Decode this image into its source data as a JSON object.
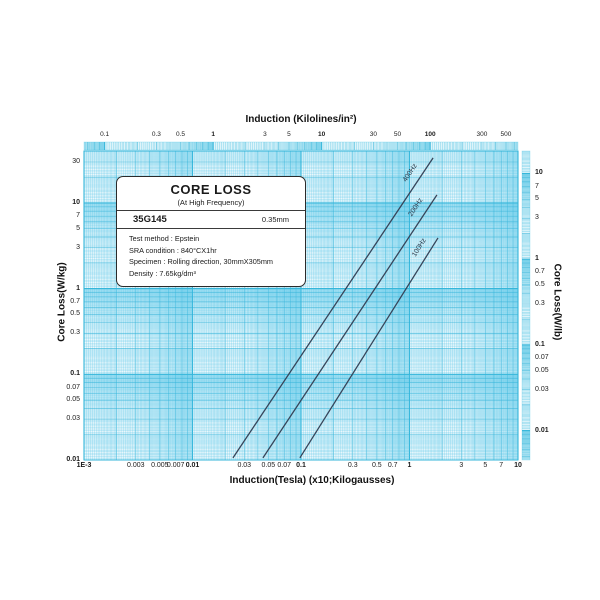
{
  "infobox": {
    "title": "CORE LOSS",
    "subtitle": "(At High Frequency)",
    "grade": "35G145",
    "thickness": "0.35mm",
    "details": [
      "Test method : Epstein",
      "SRA condition : 840°CX1hr",
      "Specimen : Rolling direction, 30mmX305mm",
      "Density : 7.65kg/dm³"
    ]
  },
  "axes": {
    "top": {
      "title": "Induction (Kilolines/in²)",
      "ticks": [
        {
          "v": 0.1,
          "label": "0.1",
          "bold": false
        },
        {
          "v": 0.3,
          "label": "0.3",
          "bold": false
        },
        {
          "v": 0.5,
          "label": "0.5",
          "bold": false
        },
        {
          "v": 1,
          "label": "1",
          "bold": true
        },
        {
          "v": 3,
          "label": "3",
          "bold": false
        },
        {
          "v": 5,
          "label": "5",
          "bold": false
        },
        {
          "v": 10,
          "label": "10",
          "bold": true
        },
        {
          "v": 30,
          "label": "30",
          "bold": false
        },
        {
          "v": 50,
          "label": "50",
          "bold": false
        },
        {
          "v": 100,
          "label": "100",
          "bold": true
        },
        {
          "v": 300,
          "label": "300",
          "bold": false
        },
        {
          "v": 500,
          "label": "500",
          "bold": false
        }
      ]
    },
    "bottom": {
      "title": "Induction(Tesla) (x10;Kilogausses)",
      "ticks": [
        {
          "v": 0.001,
          "label": "1E-3",
          "bold": true
        },
        {
          "v": 0.003,
          "label": "0.003",
          "bold": false
        },
        {
          "v": 0.005,
          "label": "0.005",
          "bold": false
        },
        {
          "v": 0.007,
          "label": "0.007",
          "bold": false
        },
        {
          "v": 0.01,
          "label": "0.01",
          "bold": true
        },
        {
          "v": 0.03,
          "label": "0.03",
          "bold": false
        },
        {
          "v": 0.05,
          "label": "0.05",
          "bold": false
        },
        {
          "v": 0.07,
          "label": "0.07",
          "bold": false
        },
        {
          "v": 0.1,
          "label": "0.1",
          "bold": true
        },
        {
          "v": 0.3,
          "label": "0.3",
          "bold": false
        },
        {
          "v": 0.5,
          "label": "0.5",
          "bold": false
        },
        {
          "v": 0.7,
          "label": "0.7",
          "bold": false
        },
        {
          "v": 1,
          "label": "1",
          "bold": true
        },
        {
          "v": 3,
          "label": "3",
          "bold": false
        },
        {
          "v": 5,
          "label": "5",
          "bold": false
        },
        {
          "v": 7,
          "label": "7",
          "bold": false
        },
        {
          "v": 10,
          "label": "10",
          "bold": true
        }
      ]
    },
    "left": {
      "title": "Core Loss(W/kg)",
      "ticks": [
        {
          "v": 30,
          "label": "30",
          "bold": false
        },
        {
          "v": 10,
          "label": "10",
          "bold": true
        },
        {
          "v": 7,
          "label": "7",
          "bold": false
        },
        {
          "v": 5,
          "label": "5",
          "bold": false
        },
        {
          "v": 3,
          "label": "3",
          "bold": false
        },
        {
          "v": 1,
          "label": "1",
          "bold": true
        },
        {
          "v": 0.7,
          "label": "0.7",
          "bold": false
        },
        {
          "v": 0.5,
          "label": "0.5",
          "bold": false
        },
        {
          "v": 0.3,
          "label": "0.3",
          "bold": false
        },
        {
          "v": 0.1,
          "label": "0.1",
          "bold": true
        },
        {
          "v": 0.07,
          "label": "0.07",
          "bold": false
        },
        {
          "v": 0.05,
          "label": "0.05",
          "bold": false
        },
        {
          "v": 0.03,
          "label": "0.03",
          "bold": false
        },
        {
          "v": 0.01,
          "label": "0.01",
          "bold": true
        }
      ]
    },
    "right": {
      "title": "Core Loss(W/lb)",
      "ticks": [
        {
          "v": 10,
          "label": "10",
          "bold": true
        },
        {
          "v": 7,
          "label": "7",
          "bold": false
        },
        {
          "v": 5,
          "label": "5",
          "bold": false
        },
        {
          "v": 3,
          "label": "3",
          "bold": false
        },
        {
          "v": 1,
          "label": "1",
          "bold": true
        },
        {
          "v": 0.7,
          "label": "0.7",
          "bold": false
        },
        {
          "v": 0.5,
          "label": "0.5",
          "bold": false
        },
        {
          "v": 0.3,
          "label": "0.3",
          "bold": false
        },
        {
          "v": 0.1,
          "label": "0.1",
          "bold": true
        },
        {
          "v": 0.07,
          "label": "0.07",
          "bold": false
        },
        {
          "v": 0.05,
          "label": "0.05",
          "bold": false
        },
        {
          "v": 0.03,
          "label": "0.03",
          "bold": false
        },
        {
          "v": 0.01,
          "label": "0.01",
          "bold": true
        }
      ]
    }
  },
  "chart_data": {
    "type": "line",
    "title": "CORE LOSS (At High Frequency) - 35G145 0.35mm",
    "xlabel": "Induction(Tesla) (x10;Kilogausses)",
    "xlabel_top": "Induction (Kilolines/in²)",
    "ylabel": "Core Loss(W/kg)",
    "ylabel_right": "Core Loss(W/lb)",
    "x_scale": "log",
    "y_scale": "log",
    "x_range_tesla": [
      0.001,
      10
    ],
    "y_range_w_per_kg": [
      0.01,
      40
    ],
    "grid": "log-log graph paper",
    "unit_conversions": {
      "top_axis_klines_per_tesla": 64.516,
      "right_axis_wkg_per_wlb": 2.2046
    },
    "series": [
      {
        "name": "400Hz",
        "points_tesla_wkg": [
          [
            0.0236,
            0.0106
          ],
          [
            1.65,
            33.5
          ]
        ]
      },
      {
        "name": "200Hz",
        "points_tesla_wkg": [
          [
            0.0446,
            0.0106
          ],
          [
            1.79,
            12.4
          ]
        ]
      },
      {
        "name": "100Hz",
        "points_tesla_wkg": [
          [
            0.0977,
            0.0106
          ],
          [
            1.83,
            3.9
          ]
        ]
      }
    ],
    "colors": {
      "paper_fine_line": "#7fd0e6",
      "paper_band": "#8edcf0",
      "curve": "#36455a"
    }
  }
}
